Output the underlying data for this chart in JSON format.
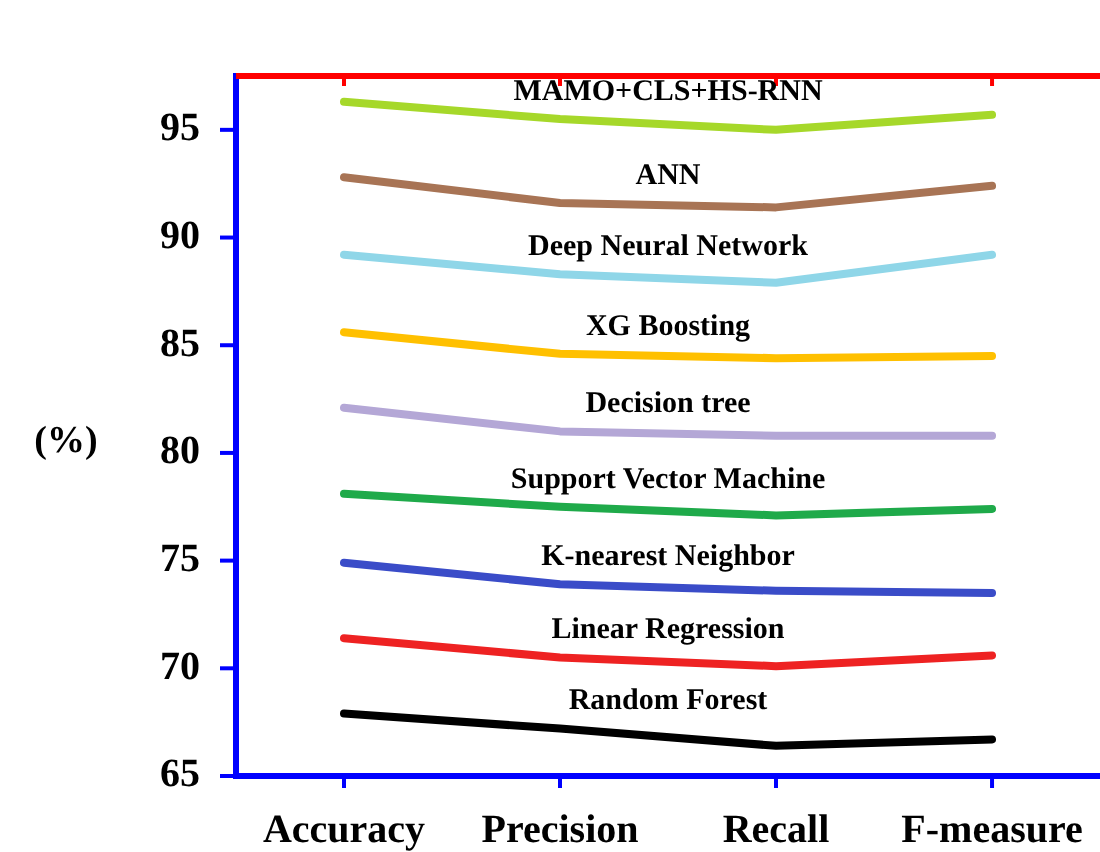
{
  "chart_data": {
    "type": "line",
    "ylabel": "(%)",
    "categories": [
      "Accuracy",
      "Precision",
      "Recall",
      "F-measure"
    ],
    "ylim": [
      65,
      97.5
    ],
    "yticks": [
      65,
      70,
      75,
      80,
      85,
      90,
      95
    ],
    "grid": false,
    "legend": false,
    "marker": "none",
    "series": [
      {
        "name": "MAMO+CLS+HS-RNN",
        "color": "#a6d82a",
        "values": [
          96.3,
          95.5,
          95.0,
          95.7
        ]
      },
      {
        "name": "ANN",
        "color": "#a87455",
        "values": [
          92.8,
          91.6,
          91.4,
          92.4
        ]
      },
      {
        "name": "Deep Neural Network",
        "color": "#8fd6e8",
        "values": [
          89.2,
          88.3,
          87.9,
          89.2
        ]
      },
      {
        "name": "XG Boosting",
        "color": "#ffc000",
        "values": [
          85.6,
          84.6,
          84.4,
          84.5
        ]
      },
      {
        "name": "Decision tree",
        "color": "#b4a7d6",
        "values": [
          82.1,
          81.0,
          80.8,
          80.8
        ]
      },
      {
        "name": "Support Vector Machine",
        "color": "#1faa4a",
        "values": [
          78.1,
          77.5,
          77.1,
          77.4
        ]
      },
      {
        "name": "K-nearest Neighbor",
        "color": "#3a4cc8",
        "values": [
          74.9,
          73.9,
          73.6,
          73.5
        ]
      },
      {
        "name": "Linear Regression",
        "color": "#ee2222",
        "values": [
          71.4,
          70.5,
          70.1,
          70.6
        ]
      },
      {
        "name": "Random Forest",
        "color": "#000000",
        "values": [
          67.9,
          67.2,
          66.4,
          66.7
        ]
      }
    ]
  }
}
